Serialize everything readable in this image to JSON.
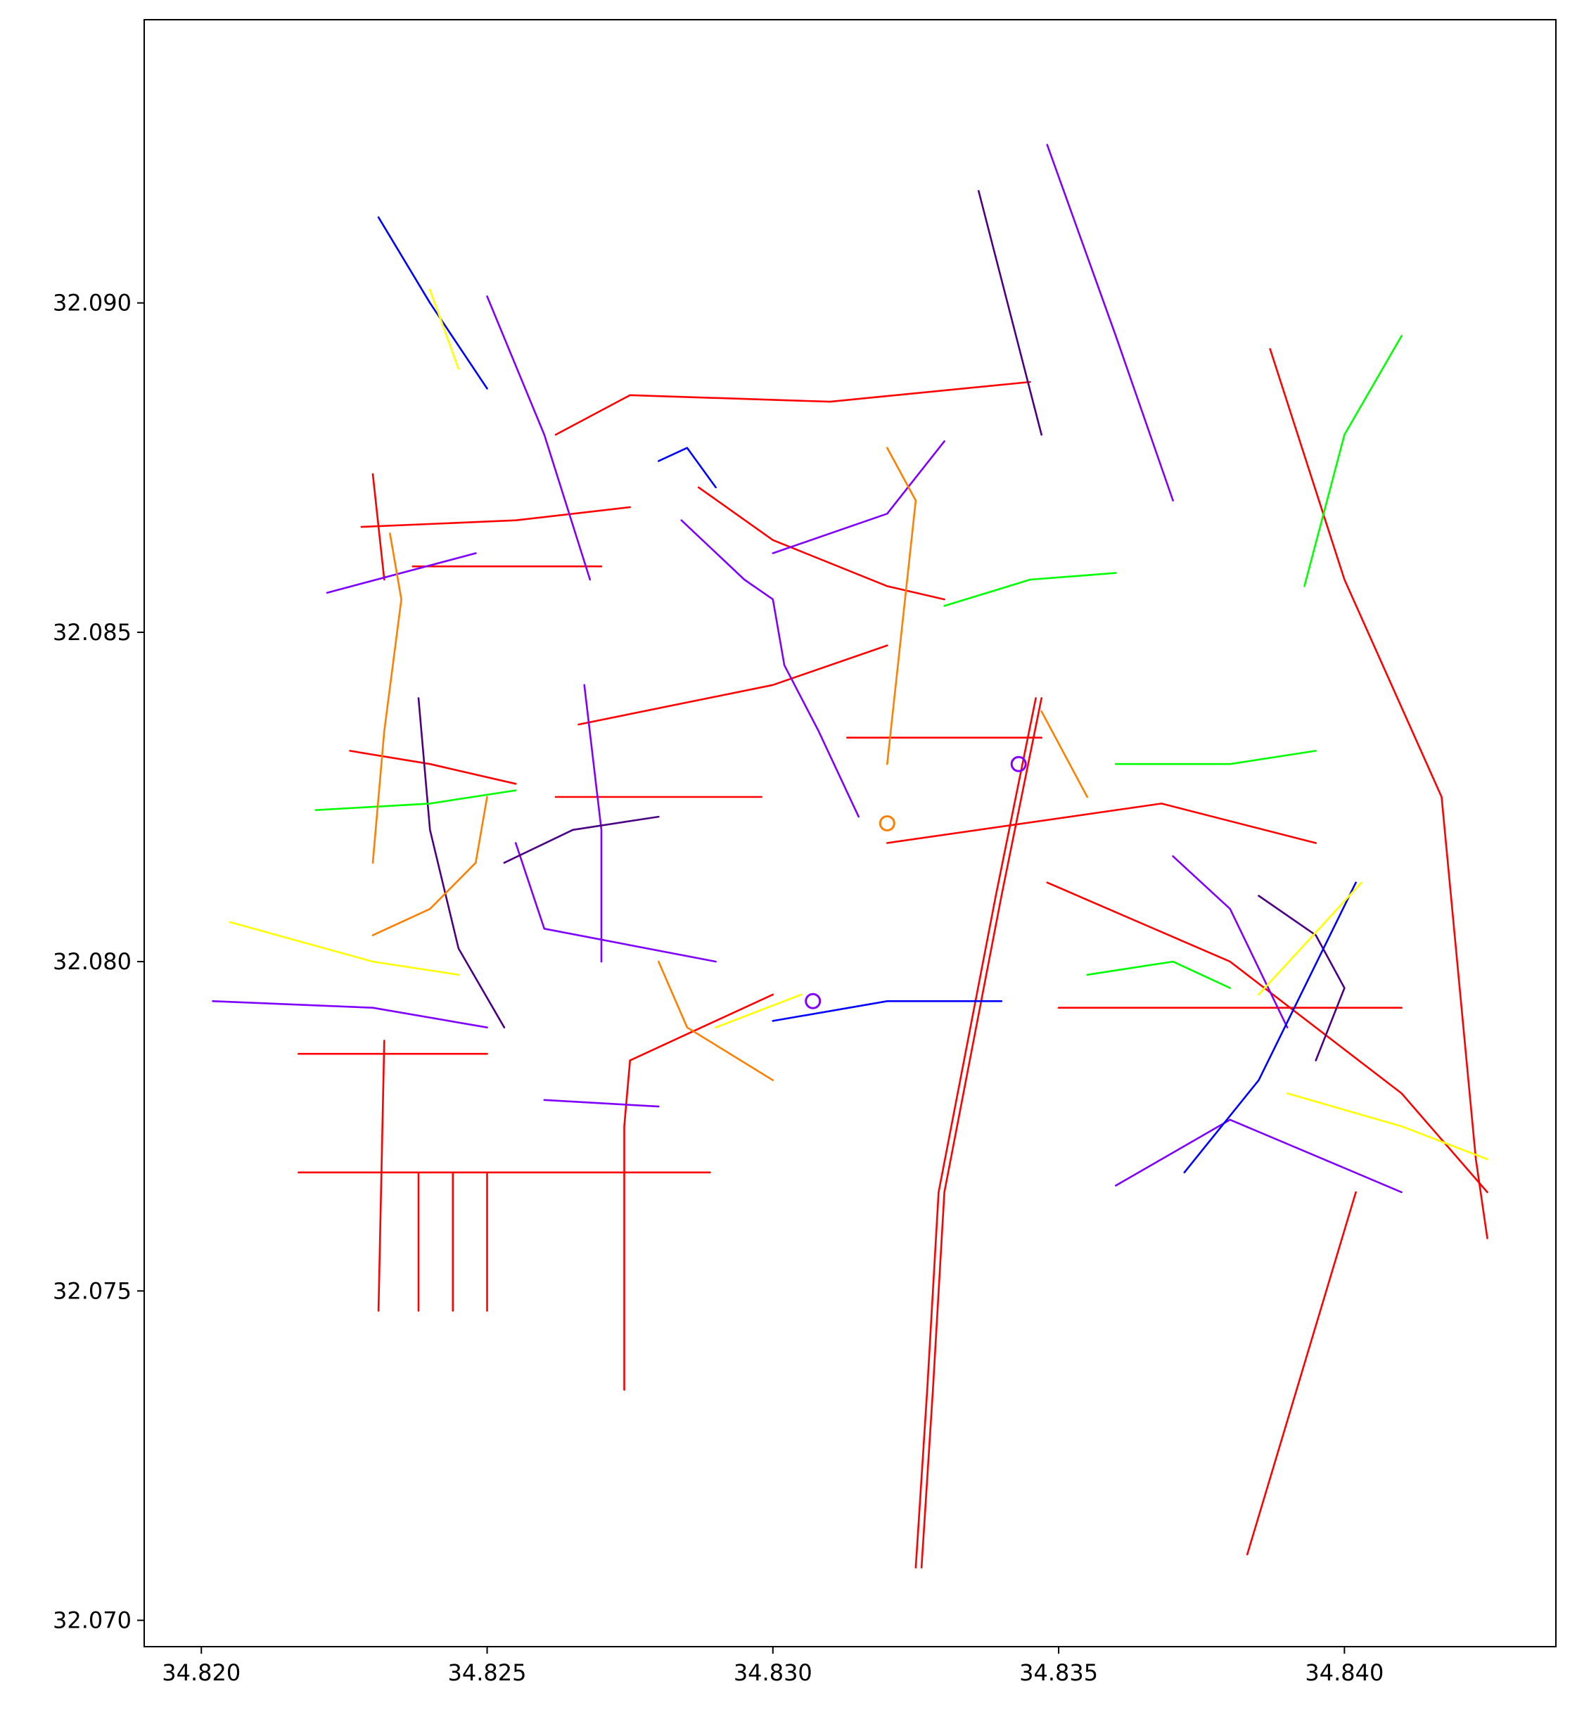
{
  "chart_data": {
    "type": "map",
    "title": "",
    "xlabel": "",
    "ylabel": "",
    "xlim": [
      34.819,
      34.8437
    ],
    "ylim": [
      32.0696,
      32.0943
    ],
    "grid": false,
    "x_ticks": [
      34.82,
      34.825,
      34.83,
      34.835,
      34.84
    ],
    "y_ticks": [
      32.07,
      32.075,
      32.08,
      32.085,
      32.09
    ],
    "x_tick_labels": [
      "34.820",
      "34.825",
      "34.830",
      "34.835",
      "34.840"
    ],
    "y_tick_labels": [
      "32.070",
      "32.075",
      "32.080",
      "32.085",
      "32.090"
    ],
    "colors": {
      "red": "#ff0000",
      "purple": "#8000ff",
      "dark_purple": "#4b0082",
      "blue": "#0000ff",
      "green": "#00ff00",
      "yellow": "#ffff00",
      "orange": "#ff7f00"
    },
    "roundabouts": [
      {
        "x": 34.8343,
        "y": 32.083,
        "color": "purple"
      },
      {
        "x": 34.832,
        "y": 32.0821,
        "color": "orange"
      },
      {
        "x": 34.8307,
        "y": 32.0794,
        "color": "purple"
      }
    ],
    "series": [
      {
        "color": "red",
        "paths": [
          [
            [
              34.8326,
              32.0708
            ],
            [
              34.8328,
              32.0735
            ],
            [
              34.833,
              32.0765
            ],
            [
              34.834,
              32.081
            ],
            [
              34.8347,
              32.084
            ]
          ],
          [
            [
              34.8325,
              32.0708
            ],
            [
              34.8327,
              32.0735
            ],
            [
              34.8329,
              32.0765
            ],
            [
              34.8339,
              32.081
            ],
            [
              34.8346,
              32.084
            ]
          ],
          [
            [
              34.8383,
              32.071
            ],
            [
              34.8402,
              32.0765
            ]
          ],
          [
            [
              34.8425,
              32.0758
            ],
            [
              34.8423,
              32.077
            ],
            [
              34.8417,
              32.0825
            ],
            [
              34.84,
              32.0858
            ],
            [
              34.8387,
              32.0893
            ]
          ],
          [
            [
              34.8217,
              32.0768
            ],
            [
              34.8289,
              32.0768
            ]
          ],
          [
            [
              34.8217,
              32.0786
            ],
            [
              34.825,
              32.0786
            ]
          ],
          [
            [
              34.8231,
              32.0747
            ],
            [
              34.8232,
              32.0788
            ]
          ],
          [
            [
              34.8238,
              32.0747
            ],
            [
              34.8238,
              32.0768
            ]
          ],
          [
            [
              34.8244,
              32.0747
            ],
            [
              34.8244,
              32.0768
            ]
          ],
          [
            [
              34.825,
              32.0747
            ],
            [
              34.825,
              32.0768
            ]
          ],
          [
            [
              34.8274,
              32.0735
            ],
            [
              34.8274,
              32.0775
            ],
            [
              34.8275,
              32.0785
            ]
          ],
          [
            [
              34.8275,
              32.0785
            ],
            [
              34.8285,
              32.0789
            ],
            [
              34.83,
              32.0795
            ]
          ],
          [
            [
              34.8262,
              32.0825
            ],
            [
              34.8298,
              32.0825
            ]
          ],
          [
            [
              34.8313,
              32.0834
            ],
            [
              34.8347,
              32.0834
            ]
          ],
          [
            [
              34.8287,
              32.0872
            ],
            [
              34.83,
              32.0864
            ],
            [
              34.832,
              32.0857
            ],
            [
              34.833,
              32.0855
            ]
          ],
          [
            [
              34.8262,
              32.088
            ],
            [
              34.8275,
              32.0886
            ],
            [
              34.831,
              32.0885
            ],
            [
              34.8345,
              32.0888
            ]
          ],
          [
            [
              34.8228,
              32.0866
            ],
            [
              34.8255,
              32.0867
            ],
            [
              34.8275,
              32.0869
            ]
          ],
          [
            [
              34.823,
              32.0874
            ],
            [
              34.8232,
              32.0858
            ]
          ],
          [
            [
              34.8237,
              32.086
            ],
            [
              34.827,
              32.086
            ]
          ],
          [
            [
              34.8226,
              32.0832
            ],
            [
              34.824,
              32.083
            ],
            [
              34.8255,
              32.0827
            ]
          ],
          [
            [
              34.8266,
              32.0836
            ],
            [
              34.83,
              32.0842
            ],
            [
              34.832,
              32.0848
            ]
          ],
          [
            [
              34.8348,
              32.0812
            ],
            [
              34.838,
              32.08
            ],
            [
              34.841,
              32.078
            ],
            [
              34.8425,
              32.0765
            ]
          ],
          [
            [
              34.835,
              32.0793
            ],
            [
              34.841,
              32.0793
            ]
          ],
          [
            [
              34.832,
              32.0818
            ],
            [
              34.8368,
              32.0824
            ],
            [
              34.8395,
              32.0818
            ]
          ]
        ]
      },
      {
        "color": "purple",
        "paths": [
          [
            [
              34.8202,
              32.0794
            ],
            [
              34.823,
              32.0793
            ],
            [
              34.825,
              32.079
            ]
          ],
          [
            [
              34.8222,
              32.0856
            ],
            [
              34.8248,
              32.0862
            ]
          ],
          [
            [
              34.825,
              32.0901
            ],
            [
              34.826,
              32.088
            ],
            [
              34.8268,
              32.0858
            ]
          ],
          [
            [
              34.8348,
              32.0924
            ],
            [
              34.836,
              32.0895
            ],
            [
              34.837,
              32.087
            ]
          ],
          [
            [
              34.833,
              32.0879
            ],
            [
              34.832,
              32.0868
            ],
            [
              34.83,
              32.0862
            ]
          ],
          [
            [
              34.8284,
              32.0867
            ],
            [
              34.8295,
              32.0858
            ],
            [
              34.83,
              32.0855
            ],
            [
              34.8302,
              32.0845
            ],
            [
              34.8308,
              32.0835
            ],
            [
              34.8315,
              32.0822
            ]
          ],
          [
            [
              34.8267,
              32.0842
            ],
            [
              34.827,
              32.082
            ],
            [
              34.827,
              32.08
            ]
          ],
          [
            [
              34.826,
              32.0779
            ],
            [
              34.828,
              32.0778
            ]
          ],
          [
            [
              34.8255,
              32.0818
            ],
            [
              34.826,
              32.0805
            ],
            [
              34.829,
              32.08
            ]
          ],
          [
            [
              34.837,
              32.0816
            ],
            [
              34.838,
              32.0808
            ],
            [
              34.839,
              32.079
            ]
          ],
          [
            [
              34.836,
              32.0766
            ],
            [
              34.838,
              32.0776
            ],
            [
              34.841,
              32.0765
            ]
          ]
        ]
      },
      {
        "color": "dark_purple",
        "paths": [
          [
            [
              34.8336,
              32.0917
            ],
            [
              34.8347,
              32.088
            ]
          ],
          [
            [
              34.8253,
              32.079
            ],
            [
              34.8245,
              32.0802
            ],
            [
              34.824,
              32.082
            ],
            [
              34.8238,
              32.084
            ]
          ],
          [
            [
              34.8253,
              32.0815
            ],
            [
              34.8265,
              32.082
            ],
            [
              34.828,
              32.0822
            ]
          ],
          [
            [
              34.8385,
              32.081
            ],
            [
              34.8395,
              32.0804
            ],
            [
              34.84,
              32.0796
            ],
            [
              34.8395,
              32.0785
            ]
          ]
        ]
      },
      {
        "color": "blue",
        "paths": [
          [
            [
              34.8231,
              32.0913
            ],
            [
              34.824,
              32.09
            ],
            [
              34.825,
              32.0887
            ]
          ],
          [
            [
              34.83,
              32.0791
            ],
            [
              34.832,
              32.0794
            ],
            [
              34.834,
              32.0794
            ]
          ],
          [
            [
              34.8372,
              32.0768
            ],
            [
              34.8385,
              32.0782
            ],
            [
              34.8402,
              32.0812
            ]
          ],
          [
            [
              34.828,
              32.0876
            ],
            [
              34.8285,
              32.0878
            ],
            [
              34.829,
              32.0872
            ]
          ]
        ]
      },
      {
        "color": "green",
        "paths": [
          [
            [
              34.8393,
              32.0857
            ],
            [
              34.84,
              32.088
            ],
            [
              34.841,
              32.0895
            ]
          ],
          [
            [
              34.822,
              32.0823
            ],
            [
              34.824,
              32.0824
            ],
            [
              34.8255,
              32.0826
            ]
          ],
          [
            [
              34.833,
              32.0854
            ],
            [
              34.8345,
              32.0858
            ],
            [
              34.836,
              32.0859
            ]
          ],
          [
            [
              34.836,
              32.083
            ],
            [
              34.838,
              32.083
            ],
            [
              34.8395,
              32.0832
            ]
          ],
          [
            [
              34.8355,
              32.0798
            ],
            [
              34.837,
              32.08
            ],
            [
              34.838,
              32.0796
            ]
          ]
        ]
      },
      {
        "color": "yellow",
        "paths": [
          [
            [
              34.8205,
              32.0806
            ],
            [
              34.823,
              32.08
            ],
            [
              34.8245,
              32.0798
            ]
          ],
          [
            [
              34.824,
              32.0902
            ],
            [
              34.8245,
              32.089
            ]
          ],
          [
            [
              34.8385,
              32.0795
            ],
            [
              34.8403,
              32.0812
            ]
          ],
          [
            [
              34.839,
              32.078
            ],
            [
              34.841,
              32.0775
            ],
            [
              34.8425,
              32.077
            ]
          ],
          [
            [
              34.829,
              32.079
            ],
            [
              34.8305,
              32.0795
            ]
          ]
        ]
      },
      {
        "color": "orange",
        "paths": [
          [
            [
              34.8233,
              32.0865
            ],
            [
              34.8235,
              32.0855
            ],
            [
              34.8232,
              32.0835
            ],
            [
              34.823,
              32.0815
            ]
          ],
          [
            [
              34.823,
              32.0804
            ],
            [
              34.824,
              32.0808
            ],
            [
              34.8248,
              32.0815
            ],
            [
              34.825,
              32.0825
            ]
          ],
          [
            [
              34.832,
              32.0878
            ],
            [
              34.8325,
              32.087
            ],
            [
              34.832,
              32.083
            ]
          ],
          [
            [
              34.828,
              32.08
            ],
            [
              34.8285,
              32.079
            ],
            [
              34.83,
              32.0782
            ]
          ],
          [
            [
              34.8347,
              32.0838
            ],
            [
              34.8355,
              32.0825
            ]
          ]
        ]
      }
    ]
  }
}
